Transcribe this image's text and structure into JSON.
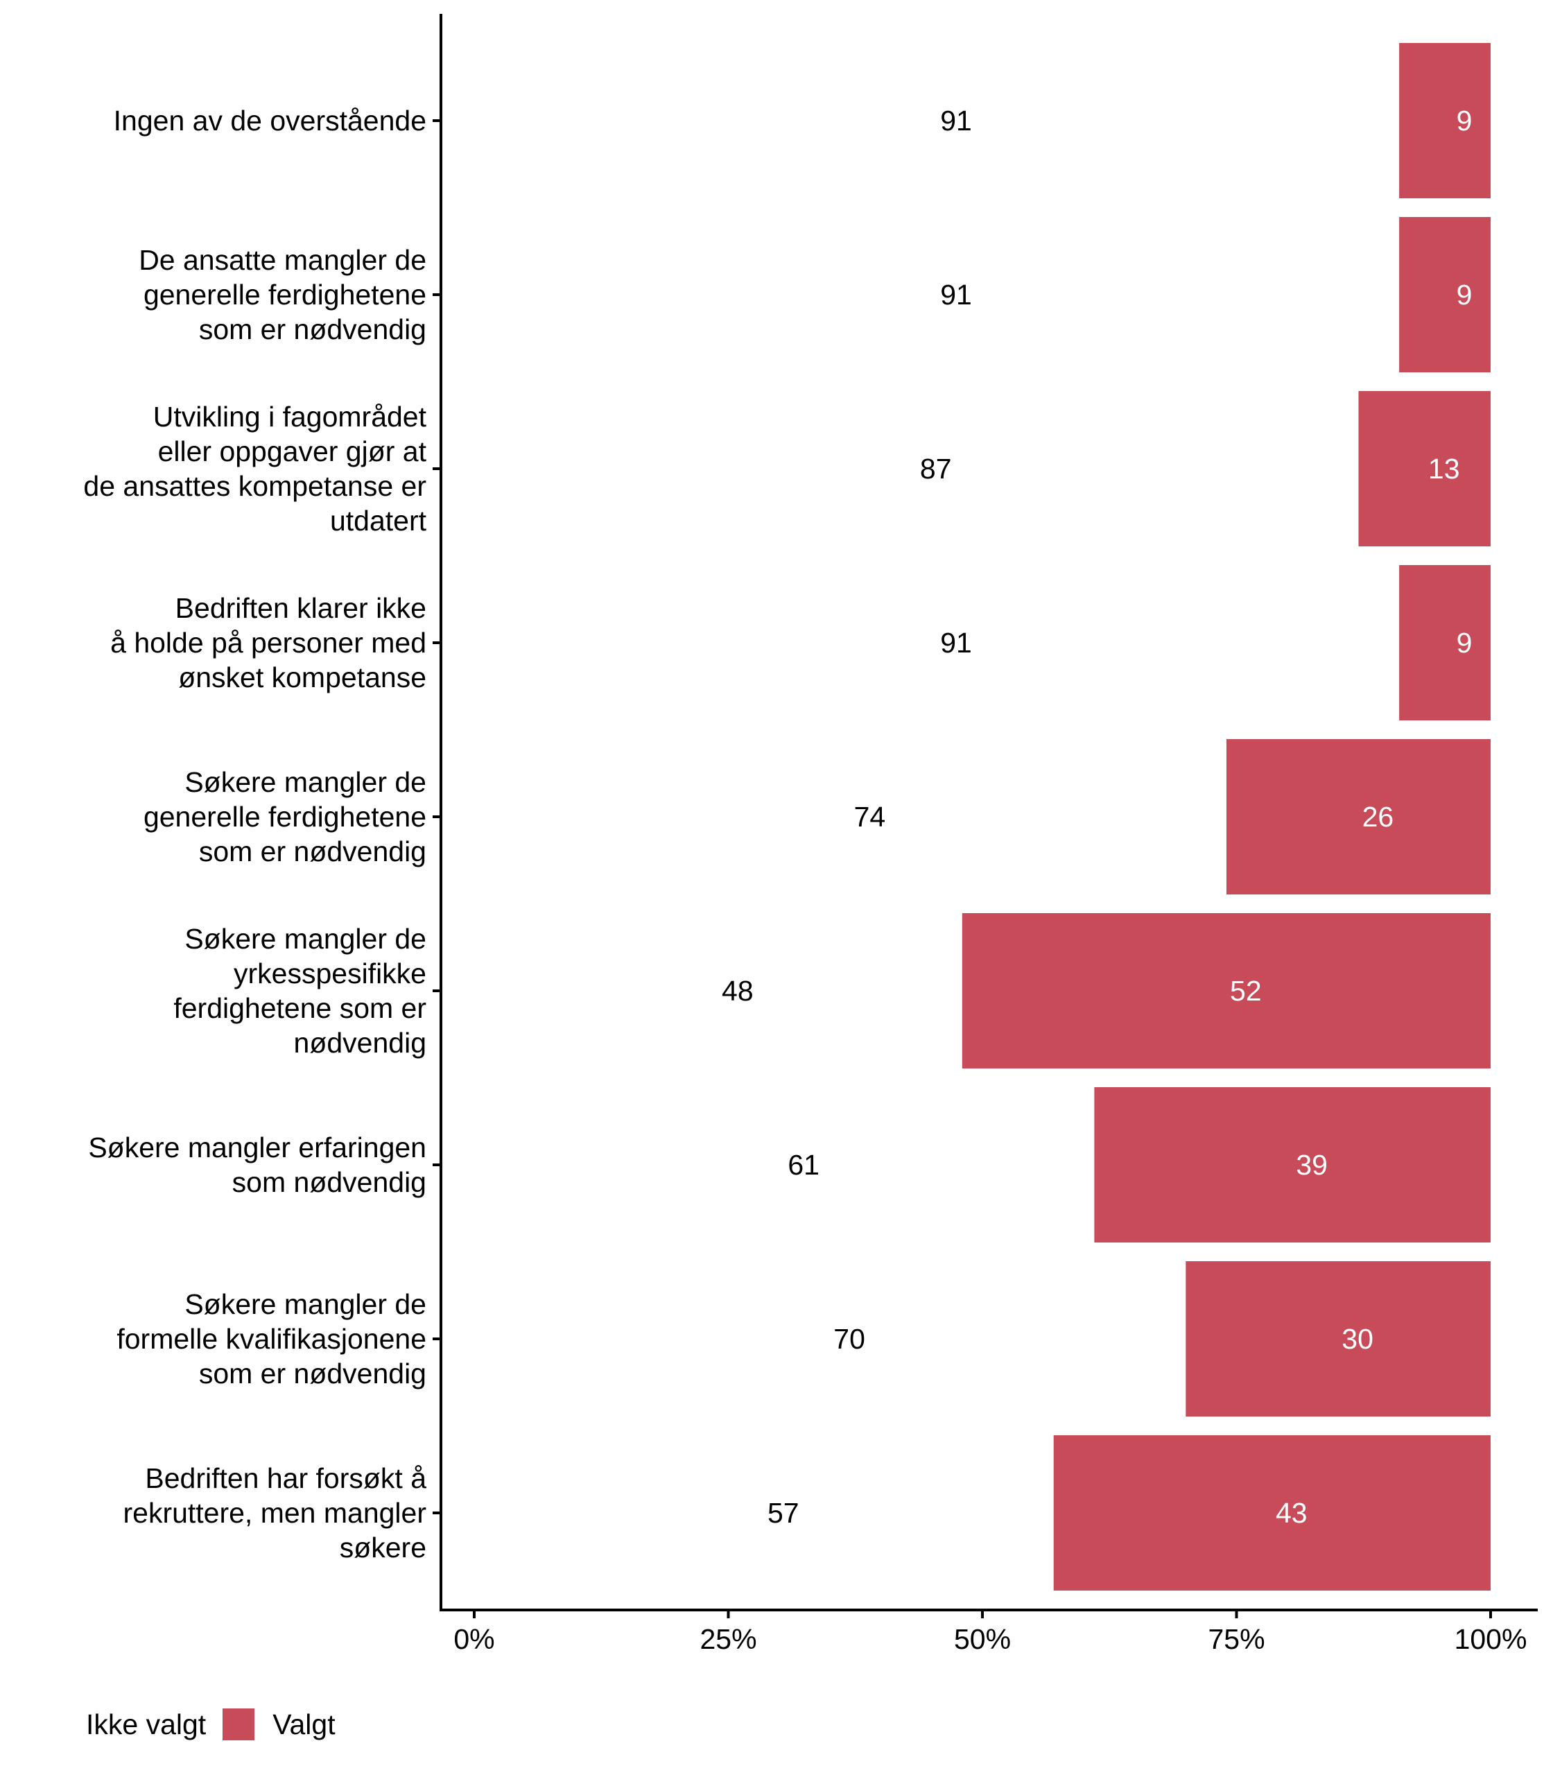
{
  "chart_data": {
    "type": "bar",
    "orientation": "horizontal",
    "stacked": true,
    "categories": [
      "Ingen av de overstående",
      "De ansatte mangler de\ngenerelle ferdighetene\nsom er nødvendig",
      "Utvikling i fagområdet\neller oppgaver gjør at\nde ansattes kompetanse er\nutdatert",
      "Bedriften klarer ikke\nå holde på personer med\nønsket kompetanse",
      "Søkere mangler de\ngenerelle ferdighetene\nsom er nødvendig",
      "Søkere mangler de\nyrkesspesifikke\nferdighetene som er\nnødvendig",
      "Søkere mangler erfaringen\nsom nødvendig",
      "Søkere mangler de\nformelle kvalifikasjonene\nsom er nødvendig",
      "Bedriften har forsøkt å\nrekruttere, men mangler\nsøkere"
    ],
    "series": [
      {
        "name": "Ikke valgt",
        "color": "#ffffff",
        "label_color": "#000000",
        "values": [
          91,
          91,
          87,
          91,
          74,
          48,
          61,
          70,
          57
        ]
      },
      {
        "name": "Valgt",
        "color": "#C84B5A",
        "label_color": "#ffffff",
        "values": [
          9,
          9,
          13,
          9,
          26,
          52,
          39,
          30,
          43
        ]
      }
    ],
    "data_labels": {
      "Ikke valgt": [
        "91",
        "91",
        "87",
        "91",
        "74",
        "48",
        "61",
        "70",
        "57"
      ],
      "Valgt": [
        "9",
        "9",
        "13",
        "9",
        "26",
        "52",
        "39",
        "30",
        "43"
      ]
    },
    "xlim": [
      0,
      100
    ],
    "xticks": [
      0,
      25,
      50,
      75,
      100
    ],
    "xtick_labels": [
      "0%",
      "25%",
      "50%",
      "75%",
      "100%"
    ],
    "title": "",
    "xlabel": "",
    "ylabel": "",
    "grid": false,
    "legend": {
      "position": "bottom-left",
      "entries": [
        "Ikke valgt",
        "Valgt"
      ]
    }
  }
}
